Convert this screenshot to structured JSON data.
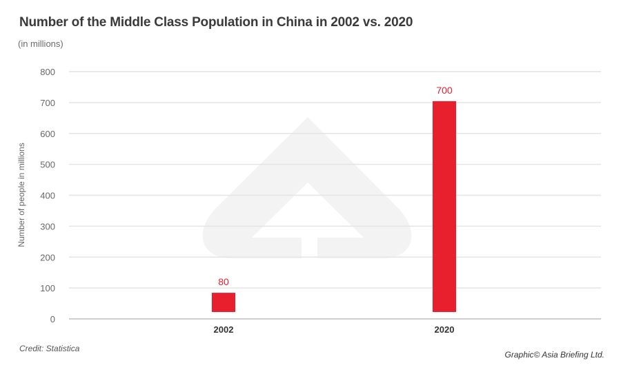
{
  "header": {
    "title": "Number of the Middle Class Population in China in 2002 vs. 2020",
    "subtitle": "(in millions)"
  },
  "footer": {
    "credit": "Credit: Statistica",
    "copyright": "Graphic© Asia Briefing Ltd."
  },
  "colors": {
    "bar": "#e8202e",
    "grid": "#e4e4e4",
    "baseline": "#cfcfcf",
    "watermark": "#f3f3f4"
  },
  "chart_data": {
    "type": "bar",
    "title": "Number of the Middle Class Population in China in 2002 vs. 2020",
    "subtitle": "(in millions)",
    "xlabel": "",
    "ylabel": "Number of people in millions",
    "categories": [
      "2002",
      "2020"
    ],
    "values": [
      80,
      700
    ],
    "data_labels": [
      "80",
      "700"
    ],
    "ylim": [
      0,
      800
    ],
    "yticks": [
      0,
      100,
      200,
      300,
      400,
      500,
      600,
      700,
      800
    ],
    "ytick_labels": [
      "0",
      "100",
      "200",
      "300",
      "400",
      "500",
      "600",
      "700",
      "800"
    ],
    "grid": true,
    "legend": "none"
  }
}
